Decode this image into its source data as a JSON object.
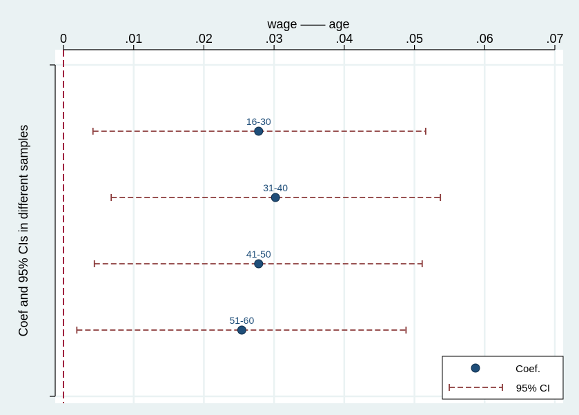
{
  "chart_data": {
    "type": "scatter",
    "title": "wage —— age",
    "ylabel": "Coef and 95% CIs in different samples",
    "xlim": [
      0,
      0.07
    ],
    "x_ticks": [
      0,
      0.01,
      0.02,
      0.03,
      0.04,
      0.05,
      0.06,
      0.07
    ],
    "x_tick_labels": [
      "0",
      ".01",
      ".02",
      ".03",
      ".04",
      ".05",
      ".06",
      ".07"
    ],
    "x_axis_position": "top",
    "grid": true,
    "reference_line": 0,
    "points": [
      {
        "label": "16-30",
        "coef": 0.0278,
        "ci_low": 0.0042,
        "ci_high": 0.0516
      },
      {
        "label": "31-40",
        "coef": 0.0302,
        "ci_low": 0.0068,
        "ci_high": 0.0537
      },
      {
        "label": "41-50",
        "coef": 0.0278,
        "ci_low": 0.0044,
        "ci_high": 0.0511
      },
      {
        "label": "51-60",
        "coef": 0.0254,
        "ci_low": 0.0019,
        "ci_high": 0.0488
      }
    ],
    "legend": {
      "position": "bottom-right",
      "entries": [
        {
          "name": "Coef.",
          "marker": "circle"
        },
        {
          "name": "95% CI",
          "marker": "dashed-range"
        }
      ]
    },
    "colors": {
      "background": "#eaf2f3",
      "plot_background": "#ffffff",
      "grid": "#eaf2f3",
      "coef": "#1f4e79",
      "ci": "#8b3a3a",
      "reference": "#a0223f",
      "point_label": "#1f4e79"
    }
  }
}
